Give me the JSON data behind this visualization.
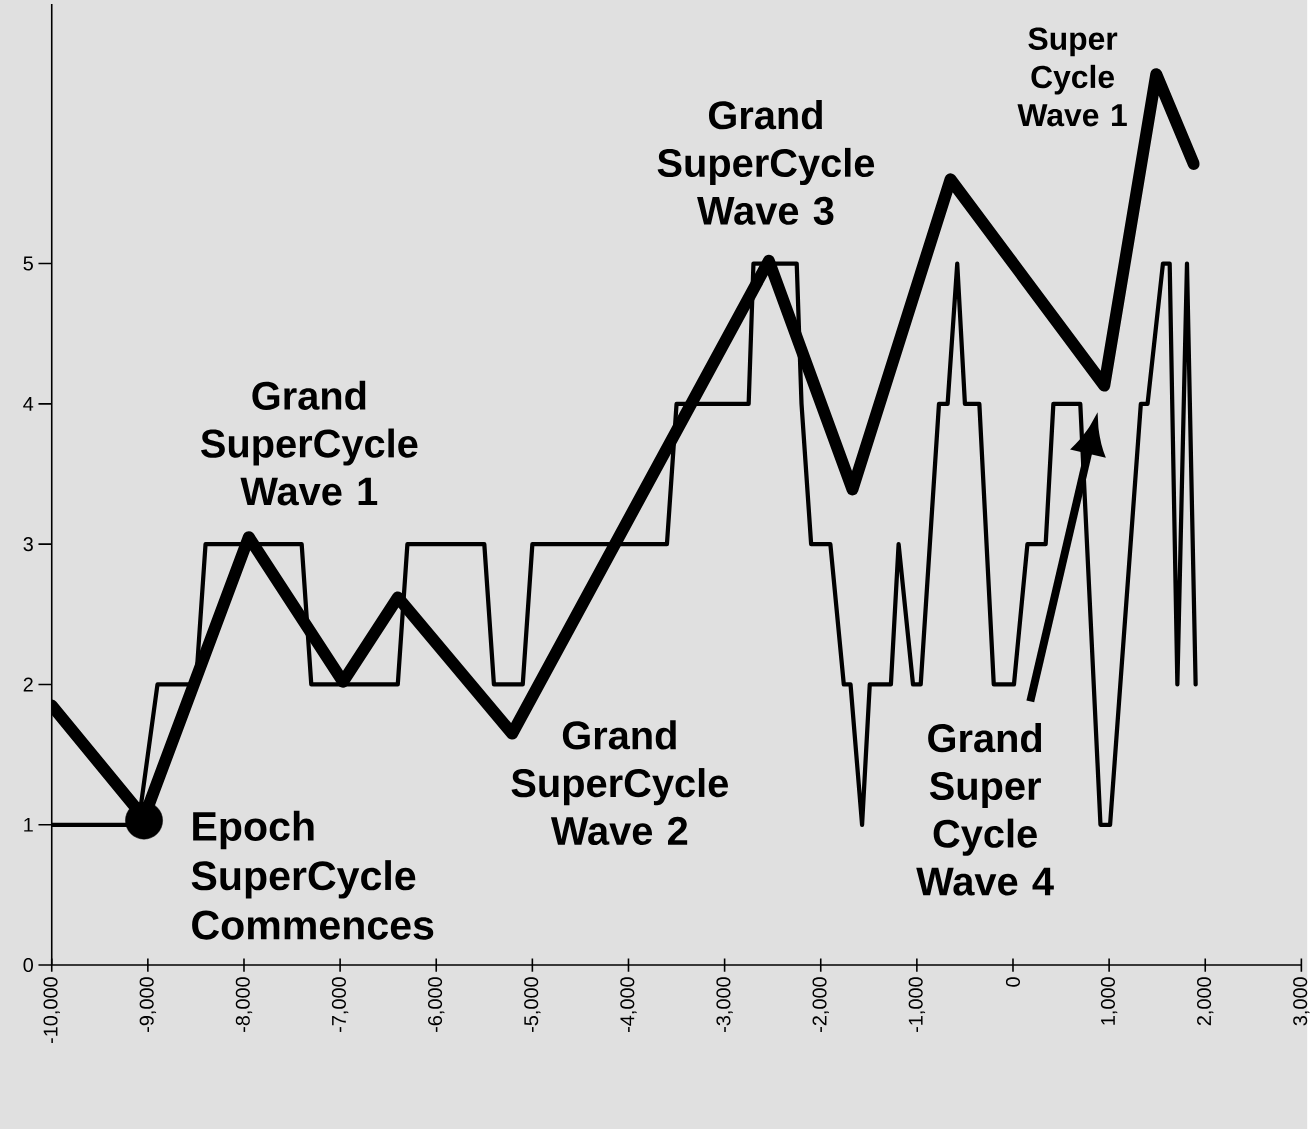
{
  "chart_data": {
    "type": "line",
    "xlim": [
      -10000,
      3000
    ],
    "ylim": [
      0,
      6.85
    ],
    "xticks": [
      {
        "value": -10000,
        "label": "-10,000"
      },
      {
        "value": -9000,
        "label": "-9,000"
      },
      {
        "value": -8000,
        "label": "-8,000"
      },
      {
        "value": -7000,
        "label": "-7,000"
      },
      {
        "value": -6000,
        "label": "-6,000"
      },
      {
        "value": -5000,
        "label": "-5,000"
      },
      {
        "value": -4000,
        "label": "-4,000"
      },
      {
        "value": -3000,
        "label": "-3,000"
      },
      {
        "value": -2000,
        "label": "-2,000"
      },
      {
        "value": -1000,
        "label": "-1,000"
      },
      0,
      {
        "value": 1000,
        "label": "1,000"
      },
      {
        "value": 2000,
        "label": "2,000"
      },
      {
        "value": 3000,
        "label": "3,000"
      }
    ],
    "yticks": [
      0,
      1,
      2,
      3,
      4,
      5
    ],
    "grid": false,
    "annotations": [
      "Grand SuperCycle Wave 1",
      "Grand SuperCycle Wave 2",
      "Grand SuperCycle Wave 3",
      "Grand Super Cycle Wave 4",
      "Super Cycle Wave 1",
      "Epoch SuperCycle Commences"
    ],
    "series": [
      {
        "color": "#000000",
        "x": [
          -10000,
          -9100,
          -8900,
          -8500,
          -8400,
          -7400,
          -7300,
          -6400,
          -6300,
          -5500,
          -5400,
          -5100,
          -5000,
          -3600,
          -3500,
          -2750,
          -2700,
          -2250,
          -2200,
          -2100,
          -1900,
          -1760,
          -1690,
          -1570,
          -1490,
          -1270,
          -1190,
          -1040,
          -960,
          -770,
          -680,
          -580,
          -500,
          -350,
          -200,
          10,
          150,
          340,
          420,
          700,
          910,
          1010,
          1330,
          1400,
          1560,
          1630,
          1710,
          1810,
          1900
        ],
        "values": [
          1,
          1,
          2,
          2,
          3,
          3,
          2,
          2,
          3,
          3,
          2,
          2,
          3,
          3,
          4,
          4,
          5,
          5,
          4,
          3,
          3,
          2,
          2,
          1,
          2,
          2,
          3,
          2,
          2,
          4,
          4,
          5,
          4,
          4,
          2,
          2,
          3,
          3,
          4,
          4,
          1,
          1,
          4,
          4,
          5,
          5,
          2,
          5,
          2
        ]
      },
      {
        "color": "#000000",
        "x": [
          -10000,
          -9040,
          -7950,
          -6970,
          -6400,
          -5210,
          -2540,
          -1670,
          -650,
          950,
          1490,
          1880
        ],
        "values": [
          1.85,
          1.05,
          3.05,
          2.02,
          2.62,
          1.65,
          5.02,
          3.39,
          5.6,
          4.13,
          6.35,
          5.71
        ]
      },
      {
        "type": "scatter",
        "color": "#000000",
        "x": [
          -9040
        ],
        "values": [
          1.03
        ]
      }
    ]
  }
}
